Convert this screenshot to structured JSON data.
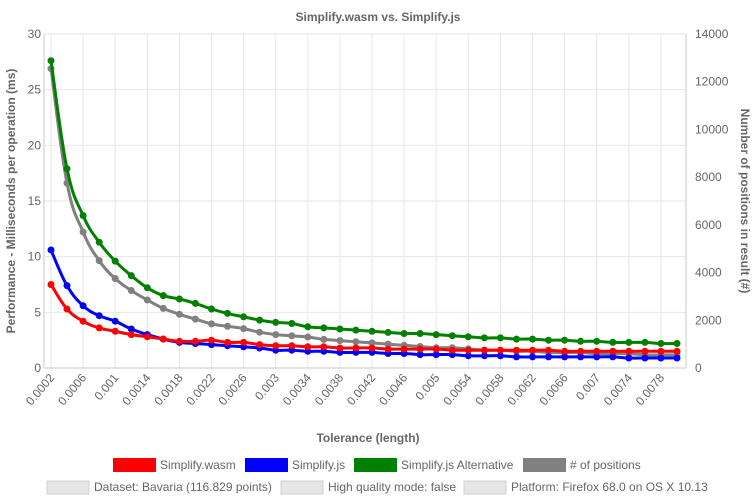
{
  "chart_data": {
    "type": "line",
    "title": "Simplify.wasm vs. Simplify.js",
    "xlabel": "Tolerance (length)",
    "ylabel": "Performance - Milliseconds per operation (ms)",
    "y2label": "Number of positions in result (#)",
    "ylim": [
      0,
      30
    ],
    "y2lim": [
      0,
      14000
    ],
    "yticks": [
      "0",
      "5",
      "10",
      "15",
      "20",
      "25",
      "30"
    ],
    "y2ticks": [
      "0",
      "2000",
      "4000",
      "6000",
      "8000",
      "10000",
      "12000",
      "14000"
    ],
    "xticks": [
      "0.0002",
      "0.0006",
      "0.001",
      "0.0014",
      "0.0018",
      "0.0022",
      "0.0026",
      "0.003",
      "0.0034",
      "0.0038",
      "0.0042",
      "0.0046",
      "0.005",
      "0.0054",
      "0.0058",
      "0.0062",
      "0.0066",
      "0.007",
      "0.0074",
      "0.0078"
    ],
    "x": [
      0.0002,
      0.0004,
      0.0006,
      0.0008,
      0.001,
      0.0012,
      0.0014,
      0.0016,
      0.0018,
      0.002,
      0.0022,
      0.0024,
      0.0026,
      0.0028,
      0.003,
      0.0032,
      0.0034,
      0.0036,
      0.0038,
      0.004,
      0.0042,
      0.0044,
      0.0046,
      0.0048,
      0.005,
      0.0052,
      0.0054,
      0.0056,
      0.0058,
      0.006,
      0.0062,
      0.0064,
      0.0066,
      0.0068,
      0.007,
      0.0072,
      0.0074,
      0.0076,
      0.0078,
      0.008
    ],
    "series": [
      {
        "name": "Simplify.wasm",
        "color": "#ff0000",
        "axis": "left",
        "values": [
          7.5,
          5.3,
          4.2,
          3.6,
          3.3,
          3.0,
          2.8,
          2.6,
          2.4,
          2.4,
          2.5,
          2.3,
          2.3,
          2.1,
          2.0,
          2.0,
          1.9,
          1.9,
          1.8,
          1.8,
          1.8,
          1.7,
          1.7,
          1.7,
          1.7,
          1.6,
          1.6,
          1.6,
          1.6,
          1.6,
          1.6,
          1.6,
          1.5,
          1.5,
          1.5,
          1.5,
          1.5,
          1.5,
          1.5,
          1.5
        ]
      },
      {
        "name": "Simplify.js",
        "color": "#0000ff",
        "axis": "left",
        "values": [
          10.6,
          7.4,
          5.6,
          4.7,
          4.2,
          3.5,
          3.0,
          2.6,
          2.3,
          2.2,
          2.1,
          2.0,
          1.9,
          1.8,
          1.6,
          1.6,
          1.5,
          1.5,
          1.4,
          1.4,
          1.4,
          1.3,
          1.3,
          1.2,
          1.2,
          1.2,
          1.1,
          1.1,
          1.1,
          1.0,
          1.0,
          1.0,
          1.0,
          1.0,
          1.0,
          1.0,
          0.9,
          0.9,
          0.9,
          0.9
        ]
      },
      {
        "name": "Simplify.js Alternative",
        "color": "#008000",
        "axis": "left",
        "values": [
          27.6,
          17.9,
          13.7,
          11.3,
          9.6,
          8.3,
          7.2,
          6.5,
          6.2,
          5.8,
          5.3,
          4.9,
          4.6,
          4.3,
          4.1,
          4.0,
          3.7,
          3.6,
          3.5,
          3.4,
          3.3,
          3.2,
          3.1,
          3.1,
          3.0,
          2.9,
          2.8,
          2.7,
          2.7,
          2.6,
          2.6,
          2.5,
          2.5,
          2.4,
          2.4,
          2.3,
          2.3,
          2.3,
          2.2,
          2.2
        ]
      },
      {
        "name": "# of positions",
        "color": "#808080",
        "axis": "right",
        "values": [
          12550,
          7750,
          5700,
          4500,
          3750,
          3250,
          2850,
          2500,
          2250,
          2050,
          1850,
          1750,
          1650,
          1500,
          1400,
          1350,
          1300,
          1200,
          1150,
          1100,
          1050,
          1000,
          950,
          900,
          850,
          850,
          800,
          750,
          750,
          700,
          700,
          650,
          650,
          650,
          600,
          600,
          600,
          550,
          550,
          550
        ]
      }
    ],
    "legend_position": "bottom",
    "grid": true
  },
  "info": [
    "Dataset: Bavaria (116.829 points)",
    "High quality mode: false",
    "Platform: Firefox 68.0 on OS X 10.13"
  ]
}
